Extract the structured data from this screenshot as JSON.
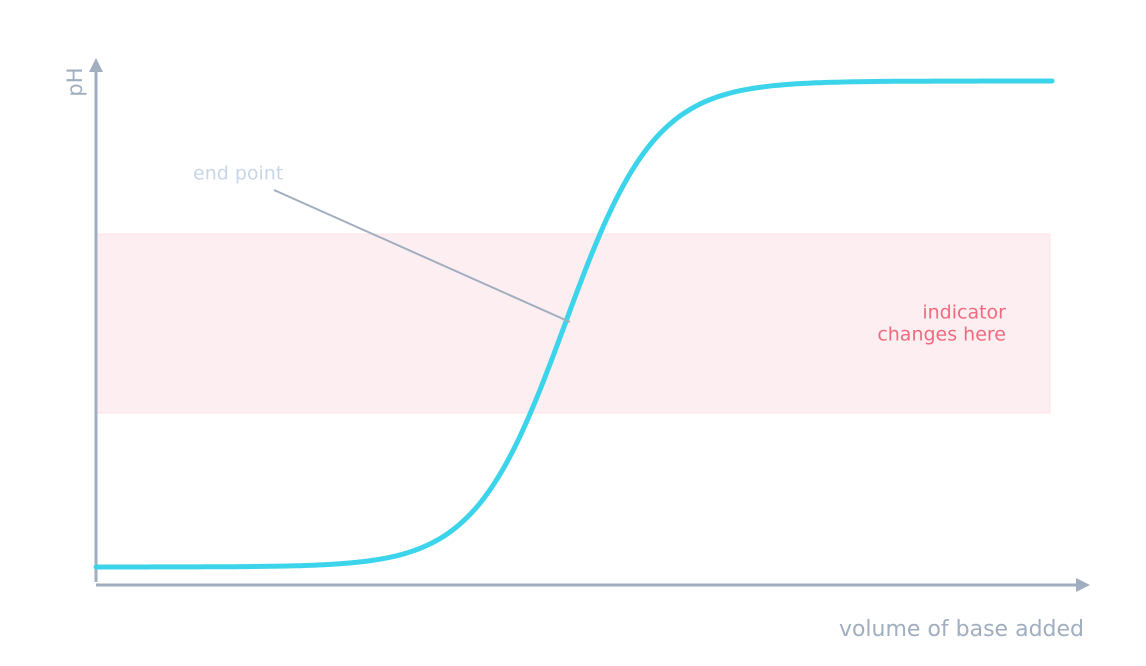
{
  "axes": {
    "y_label": "pH",
    "x_label": "volume of base added"
  },
  "annotations": {
    "end_point": "end point",
    "indicator": [
      "indicator",
      "changes here"
    ]
  }
}
